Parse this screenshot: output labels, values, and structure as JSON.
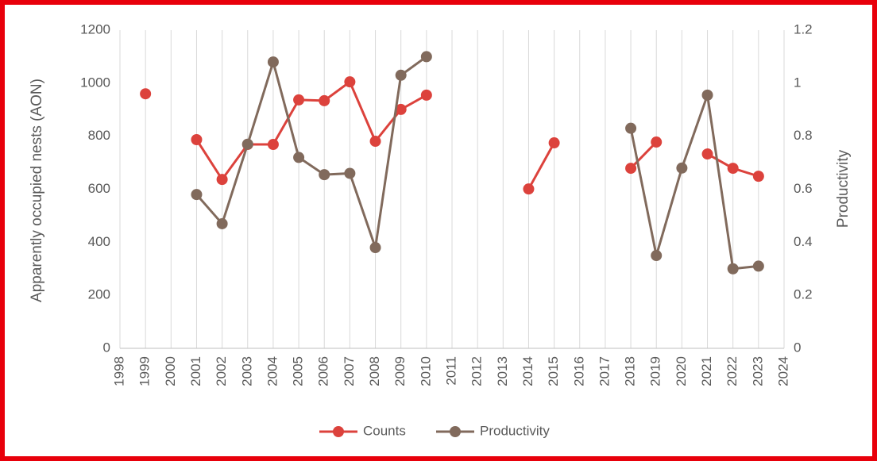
{
  "chart_data": {
    "type": "line",
    "y_label": "Apparently occupied nests (AON)",
    "y2_label": "Productivity",
    "x": [
      1999,
      2000,
      2001,
      2002,
      2003,
      2004,
      2005,
      2006,
      2007,
      2008,
      2009,
      2010,
      2011,
      2012,
      2013,
      2014,
      2015,
      2016,
      2017,
      2018,
      2019,
      2020,
      2021,
      2022,
      2023
    ],
    "series": [
      {
        "name": "Counts",
        "color": "#dc423c",
        "axis": "y",
        "values": [
          960,
          null,
          787,
          637,
          769,
          769,
          937,
          934,
          1005,
          781,
          901,
          955,
          null,
          null,
          null,
          601,
          775,
          null,
          null,
          679,
          778,
          null,
          733,
          679,
          649
        ]
      },
      {
        "name": "Productivity",
        "color": "#816a5c",
        "axis": "y2",
        "values": [
          null,
          null,
          0.58,
          0.47,
          0.77,
          1.08,
          0.72,
          0.655,
          0.66,
          0.38,
          1.03,
          1.1,
          null,
          null,
          null,
          null,
          null,
          null,
          null,
          0.83,
          0.35,
          0.68,
          0.955,
          0.3,
          0.31
        ]
      }
    ],
    "xlim": [
      1998,
      2024
    ],
    "xticks": [
      1998,
      1999,
      2000,
      2001,
      2002,
      2003,
      2004,
      2005,
      2006,
      2007,
      2008,
      2009,
      2010,
      2011,
      2012,
      2013,
      2014,
      2015,
      2016,
      2017,
      2018,
      2019,
      2020,
      2021,
      2022,
      2023,
      2024
    ],
    "ylim": [
      0,
      1200
    ],
    "yticks": [
      0,
      200,
      400,
      600,
      800,
      1000,
      1200
    ],
    "y2lim": [
      0,
      1.2
    ],
    "y2ticks": [
      0,
      0.2,
      0.4,
      0.6,
      0.8,
      1,
      1.2
    ],
    "grid": "x",
    "legend": "bottom"
  }
}
